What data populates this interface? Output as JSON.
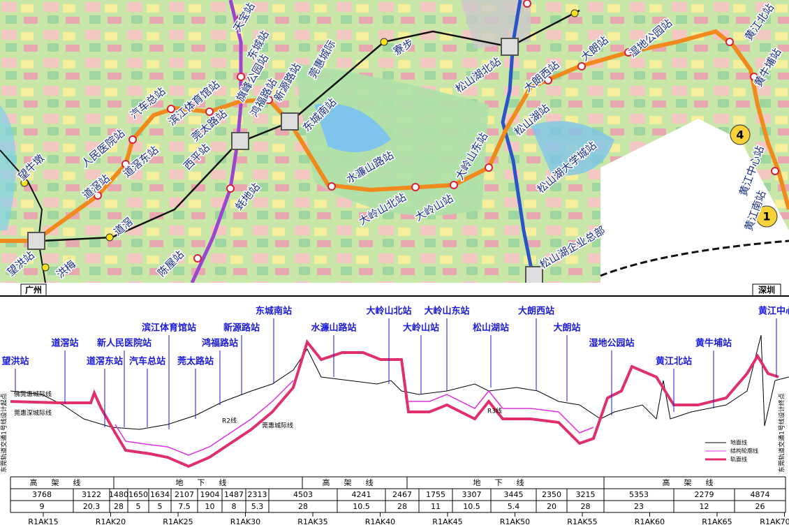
{
  "map": {
    "stations": [
      "天宝站",
      "东城站",
      "旗峰公园站",
      "鸿福路站",
      "新源路站",
      "莞惠城际",
      "东城南站",
      "滨江体育馆站",
      "汽车总站",
      "莞太路站",
      "西平站",
      "蚝地站",
      "人民医院站",
      "道滘东站",
      "道滘站",
      "望牛墩",
      "道滘",
      "望洪站",
      "洪梅",
      "陈屋站",
      "寮步",
      "松山湖北站",
      "大朗西站",
      "大朗站",
      "湿地公园站",
      "黄江北站",
      "黄牛埔站",
      "松山湖站",
      "松山湖大学城站",
      "大岭山东站",
      "水濂山路站",
      "大岭山北站",
      "大岭山站",
      "松山湖企业总部",
      "黄江中心站",
      "黄江南站"
    ],
    "badges": [
      "4",
      "1"
    ]
  },
  "profile": {
    "left_city": "广州",
    "right_city": "深圳",
    "stations": [
      "望洪站",
      "道滘站",
      "道滘东站",
      "新人民医院站",
      "汽车总站",
      "滨江体育馆站",
      "莞太路站",
      "鸿福路站",
      "新源路站",
      "东城南站",
      "水濂山路站",
      "大岭山北站",
      "大岭山站",
      "大岭山东站",
      "松山湖站",
      "大朗西站",
      "大朗站",
      "湿地公园站",
      "黄江北站",
      "黄牛埔站",
      "黄江中心"
    ],
    "notes": [
      "佛莞惠城际线",
      "莞惠深城际线",
      "R2线",
      "莞惠城际线",
      "R3线"
    ],
    "start_label": "东莞轨道交通1号线设计起点",
    "end_label": "东莞轨道交通1号线设计终点",
    "legend": [
      "地面线",
      "结构轮廓线",
      "轨面线"
    ]
  },
  "table": {
    "sections": [
      "高架线",
      "地下线",
      "高架线",
      "地下线",
      "高架线"
    ],
    "lengths": [
      3768,
      3122,
      1480,
      1650,
      1634,
      2107,
      1904,
      1487,
      2313,
      4503,
      4241,
      2467,
      1755,
      3307,
      3445,
      2350,
      3215,
      5353,
      2279,
      4874
    ],
    "slopes": [
      9,
      20.3,
      28,
      5,
      5,
      7.5,
      10,
      8,
      5.3,
      28,
      10.5,
      28,
      11,
      10.5,
      5.4,
      20,
      28,
      23,
      12,
      26
    ],
    "mileage": [
      "R1AK15",
      "R1AK20",
      "R1AK25",
      "R1AK30",
      "R1AK35",
      "R1AK40",
      "R1AK45",
      "R1AK50",
      "R1AK55",
      "R1AK60",
      "R1AK65",
      "R1AK70"
    ]
  }
}
